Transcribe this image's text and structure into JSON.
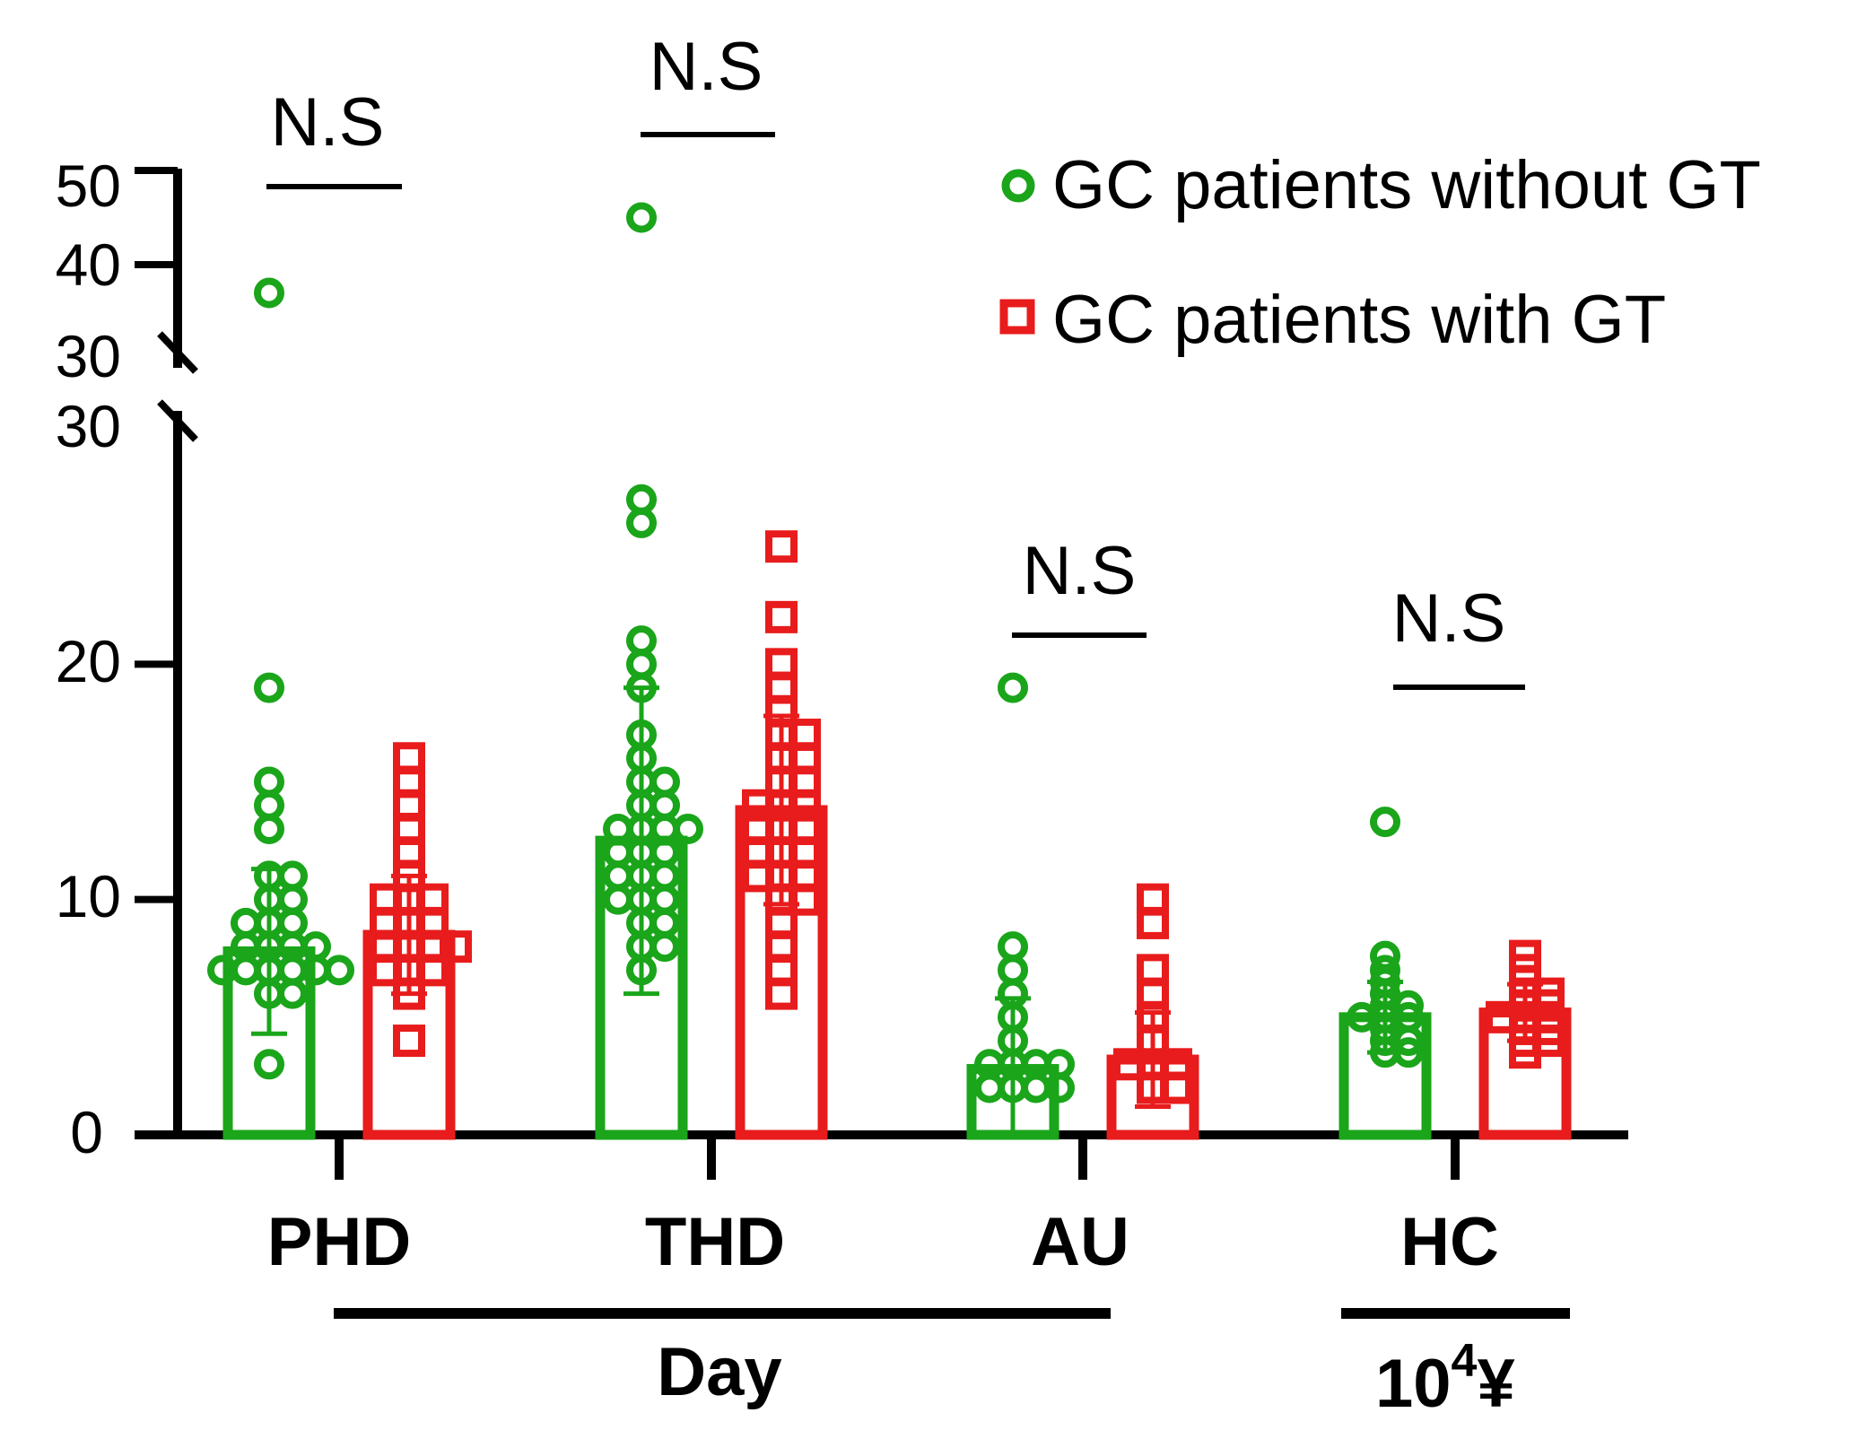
{
  "chart_data": {
    "type": "bar",
    "title": "",
    "xlabel": "",
    "ylabel": "",
    "y_axis_break": true,
    "ylim_lower": [
      0,
      30
    ],
    "ylim_upper": [
      30,
      50
    ],
    "yticks_lower": [
      "0",
      "10",
      "20",
      "30"
    ],
    "yticks_upper": [
      "30",
      "40",
      "50"
    ],
    "legend_position": "top-right",
    "categories": [
      "PHD",
      "THD",
      "AU",
      "HC"
    ],
    "significance": [
      "N.S",
      "N.S",
      "N.S",
      "N.S"
    ],
    "group_labels": [
      {
        "text": "Day",
        "sup": "",
        "suffix": "",
        "spans": [
          "PHD",
          "THD",
          "AU"
        ]
      },
      {
        "text": "10",
        "sup": "4",
        "suffix": "¥",
        "spans": [
          "HC"
        ]
      }
    ],
    "series": [
      {
        "name": "GC patients without GT",
        "color": "#1aa51a",
        "marker": "circle",
        "means": [
          7.8,
          12.5,
          2.8,
          5.0
        ],
        "sd": [
          3.5,
          6.5,
          3.0,
          1.5
        ],
        "points": [
          [
            37,
            19,
            15,
            14,
            13,
            11,
            11,
            10,
            10,
            9,
            9,
            9,
            8,
            8,
            8,
            8,
            7,
            7,
            7,
            7,
            7,
            7,
            6,
            6,
            3
          ],
          [
            45,
            27,
            26,
            21,
            20,
            19,
            17,
            16,
            15,
            15,
            14,
            14,
            13,
            13,
            13,
            13,
            12,
            12,
            12,
            11,
            11,
            11,
            10,
            10,
            10,
            9,
            9,
            8,
            8,
            7
          ],
          [
            19,
            8,
            7,
            6,
            5,
            4,
            3,
            3,
            3,
            3,
            2,
            2,
            2,
            2
          ],
          [
            13.3,
            7.6,
            7,
            6.5,
            6,
            5.5,
            5.5,
            5,
            5,
            5,
            4.5,
            4,
            4,
            3.5,
            3.5
          ]
        ]
      },
      {
        "name": "GC patients with GT",
        "color": "#e81c1c",
        "marker": "square",
        "means": [
          8.5,
          13.8,
          3.2,
          5.2
        ],
        "sd": [
          2.5,
          4.0,
          2.0,
          1.2
        ],
        "points": [
          [
            16,
            15,
            14,
            13,
            12,
            11,
            10,
            10,
            10,
            9,
            9,
            9,
            8,
            8,
            8,
            8,
            7,
            7,
            7,
            6,
            4
          ],
          [
            25,
            22,
            20,
            19,
            18,
            17,
            17,
            16,
            16,
            15,
            15,
            14,
            14,
            14,
            13,
            13,
            13,
            12,
            12,
            12,
            11,
            11,
            11,
            10,
            10,
            9,
            8,
            7,
            6
          ],
          [
            10,
            9,
            7,
            6,
            5,
            4,
            3,
            3,
            3,
            2,
            2
          ],
          [
            7.6,
            7,
            6.5,
            6,
            6,
            5.5,
            5.5,
            5,
            5,
            5,
            4.5,
            4.5,
            4,
            4,
            3.5
          ]
        ]
      }
    ]
  }
}
